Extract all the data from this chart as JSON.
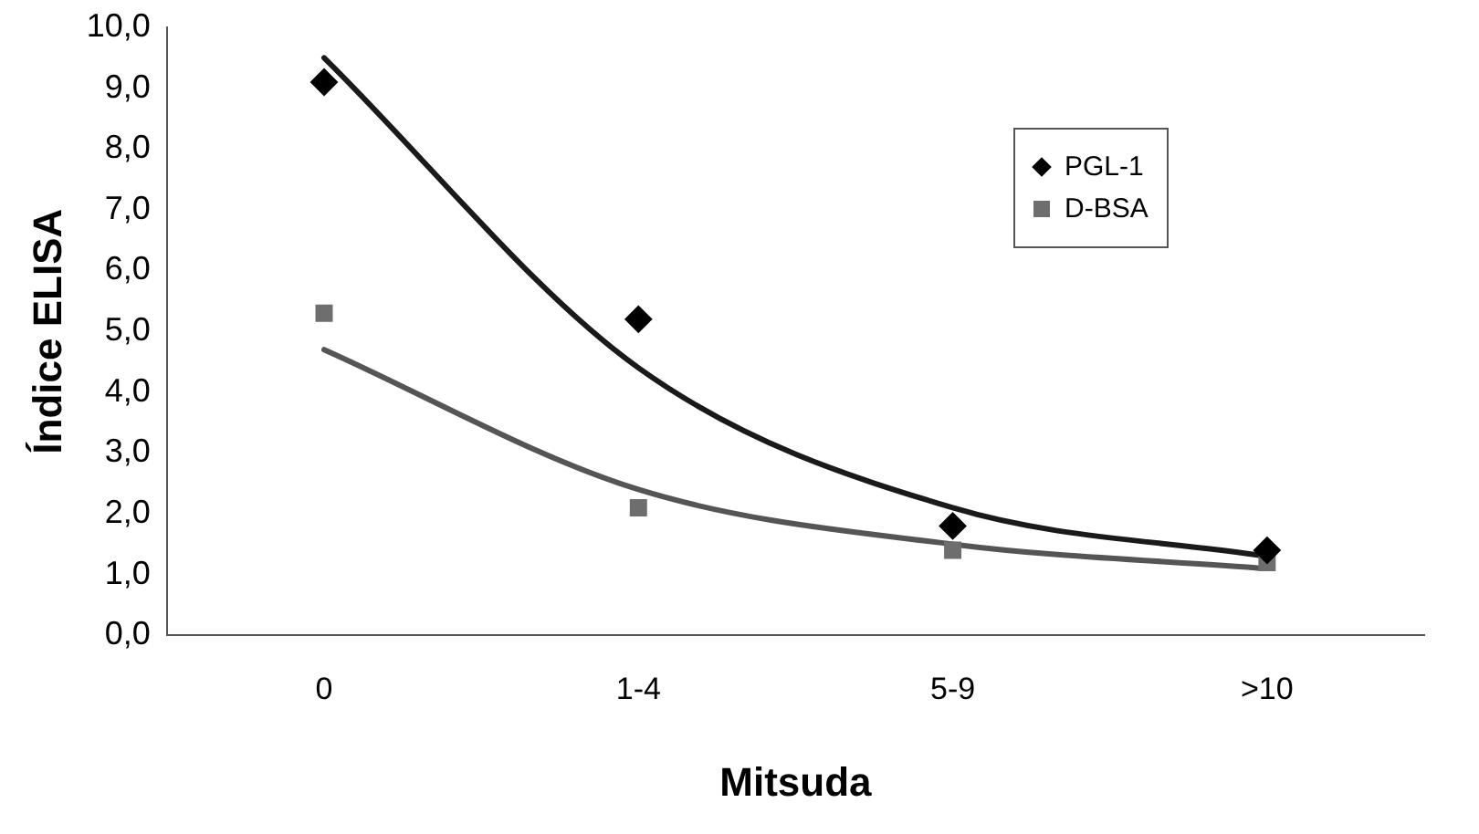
{
  "chart_data": {
    "type": "scatter",
    "xlabel": "Mitsuda",
    "ylabel": "Índice ELISA",
    "categories": [
      "0",
      "1-4",
      "5-9",
      ">10"
    ],
    "series": [
      {
        "name": "PGL-1",
        "color": "#000000",
        "marker": "diamond",
        "values": [
          9.1,
          5.2,
          1.8,
          1.4
        ]
      },
      {
        "name": "D-BSA",
        "color": "#6e6e6e",
        "marker": "square",
        "values": [
          5.3,
          2.1,
          1.4,
          1.2
        ]
      },
      {
        "type": "line",
        "color": "#1a1a1a",
        "marker": "none",
        "values": [
          9.5,
          4.4,
          2.1,
          1.3
        ]
      },
      {
        "type": "line",
        "color": "#555555",
        "marker": "none",
        "values": [
          4.7,
          2.4,
          1.5,
          1.1
        ]
      }
    ],
    "ylim": [
      0,
      10
    ],
    "yticks": [
      {
        "value": 0,
        "label": "0,0"
      },
      {
        "value": 1,
        "label": "1,0"
      },
      {
        "value": 2,
        "label": "2,0"
      },
      {
        "value": 3,
        "label": "3,0"
      },
      {
        "value": 4,
        "label": "4,0"
      },
      {
        "value": 5,
        "label": "5,0"
      },
      {
        "value": 6,
        "label": "6,0"
      },
      {
        "value": 7,
        "label": "7,0"
      },
      {
        "value": 8,
        "label": "8,0"
      },
      {
        "value": 9,
        "label": "9,0"
      },
      {
        "value": 10,
        "label": "10,0"
      }
    ],
    "grid": false,
    "legend": "top right"
  }
}
